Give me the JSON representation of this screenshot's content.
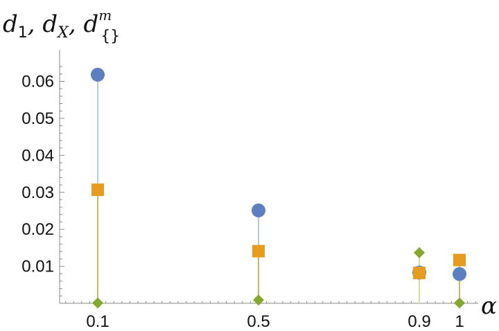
{
  "chart_data": {
    "type": "scatter",
    "ylabel": {
      "parts": [
        "d",
        "1",
        ", ",
        "d",
        "X",
        ", ",
        "d",
        "m",
        "{}"
      ]
    },
    "xlabel": "α",
    "x_ticks": [
      0.1,
      0.5,
      0.9,
      1
    ],
    "y_ticks": [
      "0.01",
      "0.02",
      "0.03",
      "0.04",
      "0.05",
      "0.06"
    ],
    "xlim": [
      0,
      1.05
    ],
    "ylim": [
      0,
      0.065
    ],
    "series": [
      {
        "marker": "circle",
        "color": "#5b7fbf",
        "stem_color": "#aecde0",
        "x": [
          0.1,
          0.5,
          0.9,
          1
        ],
        "y": [
          0.0618,
          0.0251,
          0.0083,
          0.0079
        ]
      },
      {
        "marker": "square",
        "color": "#e69d1f",
        "stem_color": "#c9b862",
        "x": [
          0.1,
          0.5,
          0.9,
          1
        ],
        "y": [
          0.0307,
          0.0141,
          0.0082,
          0.0117
        ]
      },
      {
        "marker": "diamond",
        "color": "#83a82c",
        "stem_color": "#d6dd9a",
        "x": [
          0.1,
          0.5,
          0.9,
          1
        ],
        "y": [
          0.0001,
          0.0009,
          0.0137,
          0.0001
        ]
      }
    ]
  }
}
